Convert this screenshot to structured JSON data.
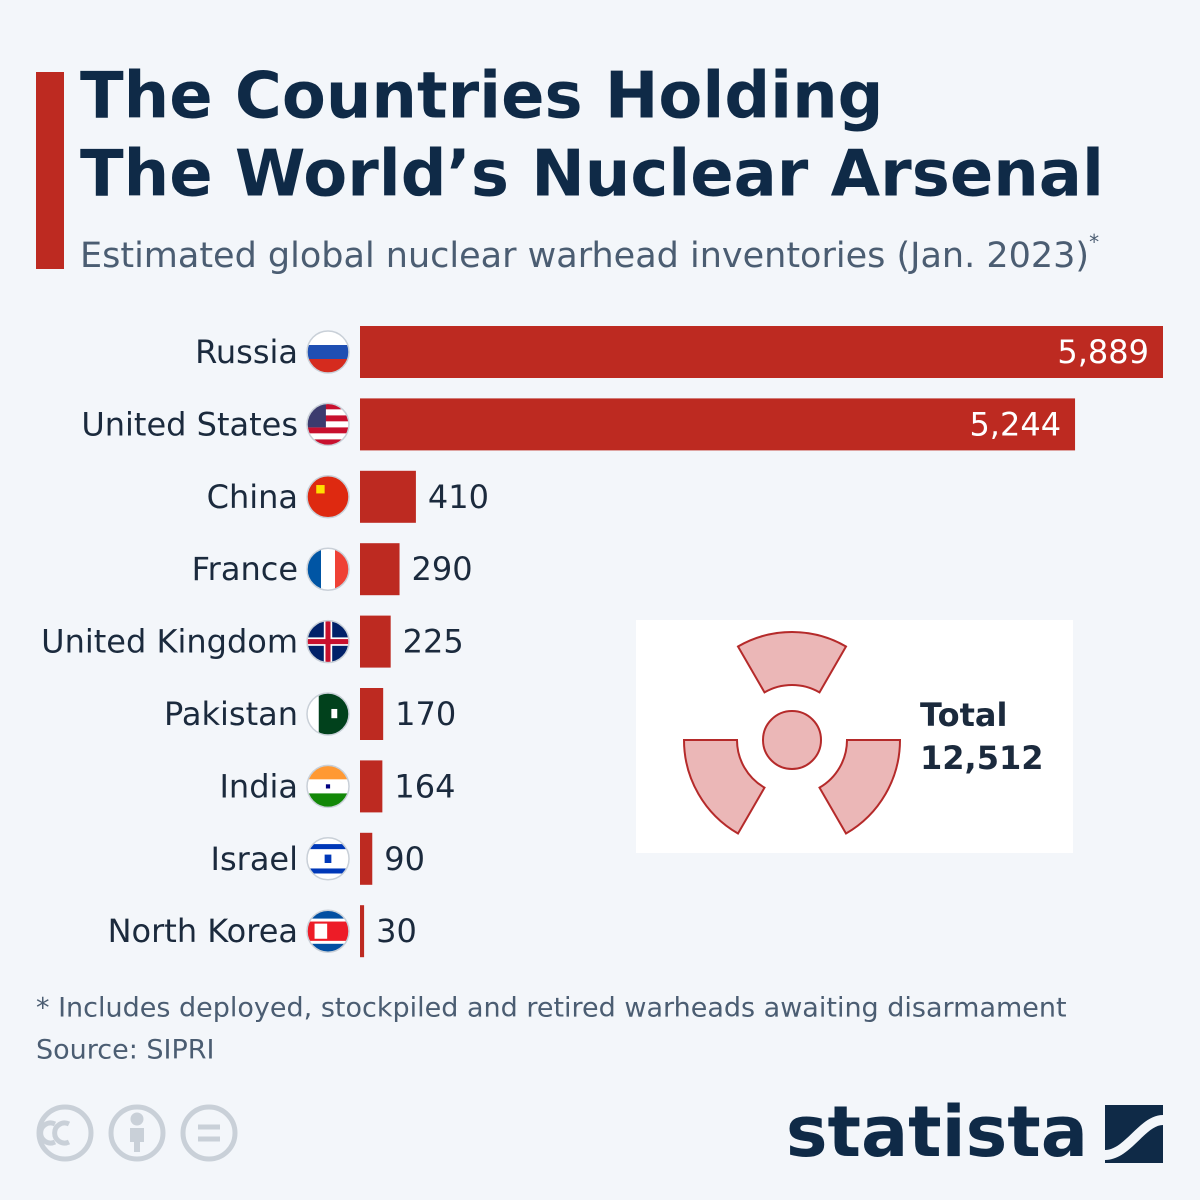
{
  "chart_data": {
    "type": "bar",
    "orientation": "horizontal",
    "title": [
      "The Countries Holding",
      "The World’s Nuclear Arsenal"
    ],
    "subtitle": "Estimated global nuclear warhead inventories (Jan. 2023)",
    "subtitle_mark": "*",
    "categories": [
      "Russia",
      "United States",
      "China",
      "France",
      "United Kingdom",
      "Pakistan",
      "India",
      "Israel",
      "North Korea"
    ],
    "values": [
      5889,
      5244,
      410,
      290,
      225,
      170,
      164,
      90,
      30
    ],
    "value_labels": [
      "5,889",
      "5,244",
      "410",
      "290",
      "225",
      "170",
      "164",
      "90",
      "30"
    ],
    "color": "#bd2a21",
    "annotation": {
      "label": "Total",
      "value": "12,512"
    },
    "footnote": "* Includes deployed, stockpiled and retired warheads awaiting disarmament",
    "source": "Source: SIPRI",
    "brand": "statista"
  }
}
